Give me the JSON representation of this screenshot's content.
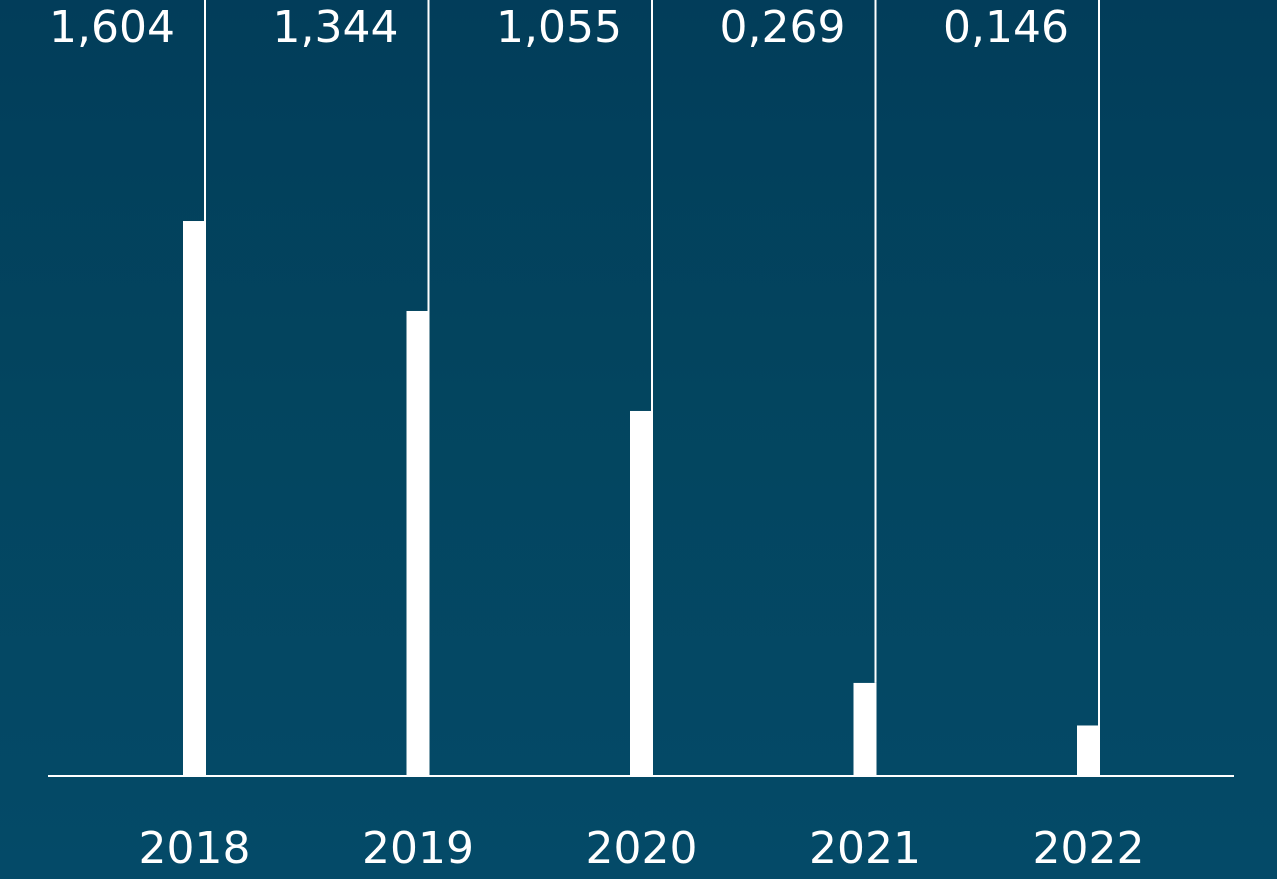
{
  "chart_data": {
    "type": "bar",
    "title": "",
    "xlabel": "",
    "ylabel": "",
    "categories": [
      "2018",
      "2019",
      "2020",
      "2021",
      "2022"
    ],
    "values": [
      1.604,
      1.344,
      1.055,
      0.269,
      0.146
    ],
    "value_labels": [
      "1,604",
      "1,344",
      "1,055",
      "0,269",
      "0,146"
    ],
    "ylim": [
      0,
      1.6
    ],
    "grid": false,
    "legend": "none",
    "colors": {
      "background": "#03455f",
      "bar": "#ffffff",
      "axis": "#ffffff",
      "text": "#ffffff"
    }
  }
}
